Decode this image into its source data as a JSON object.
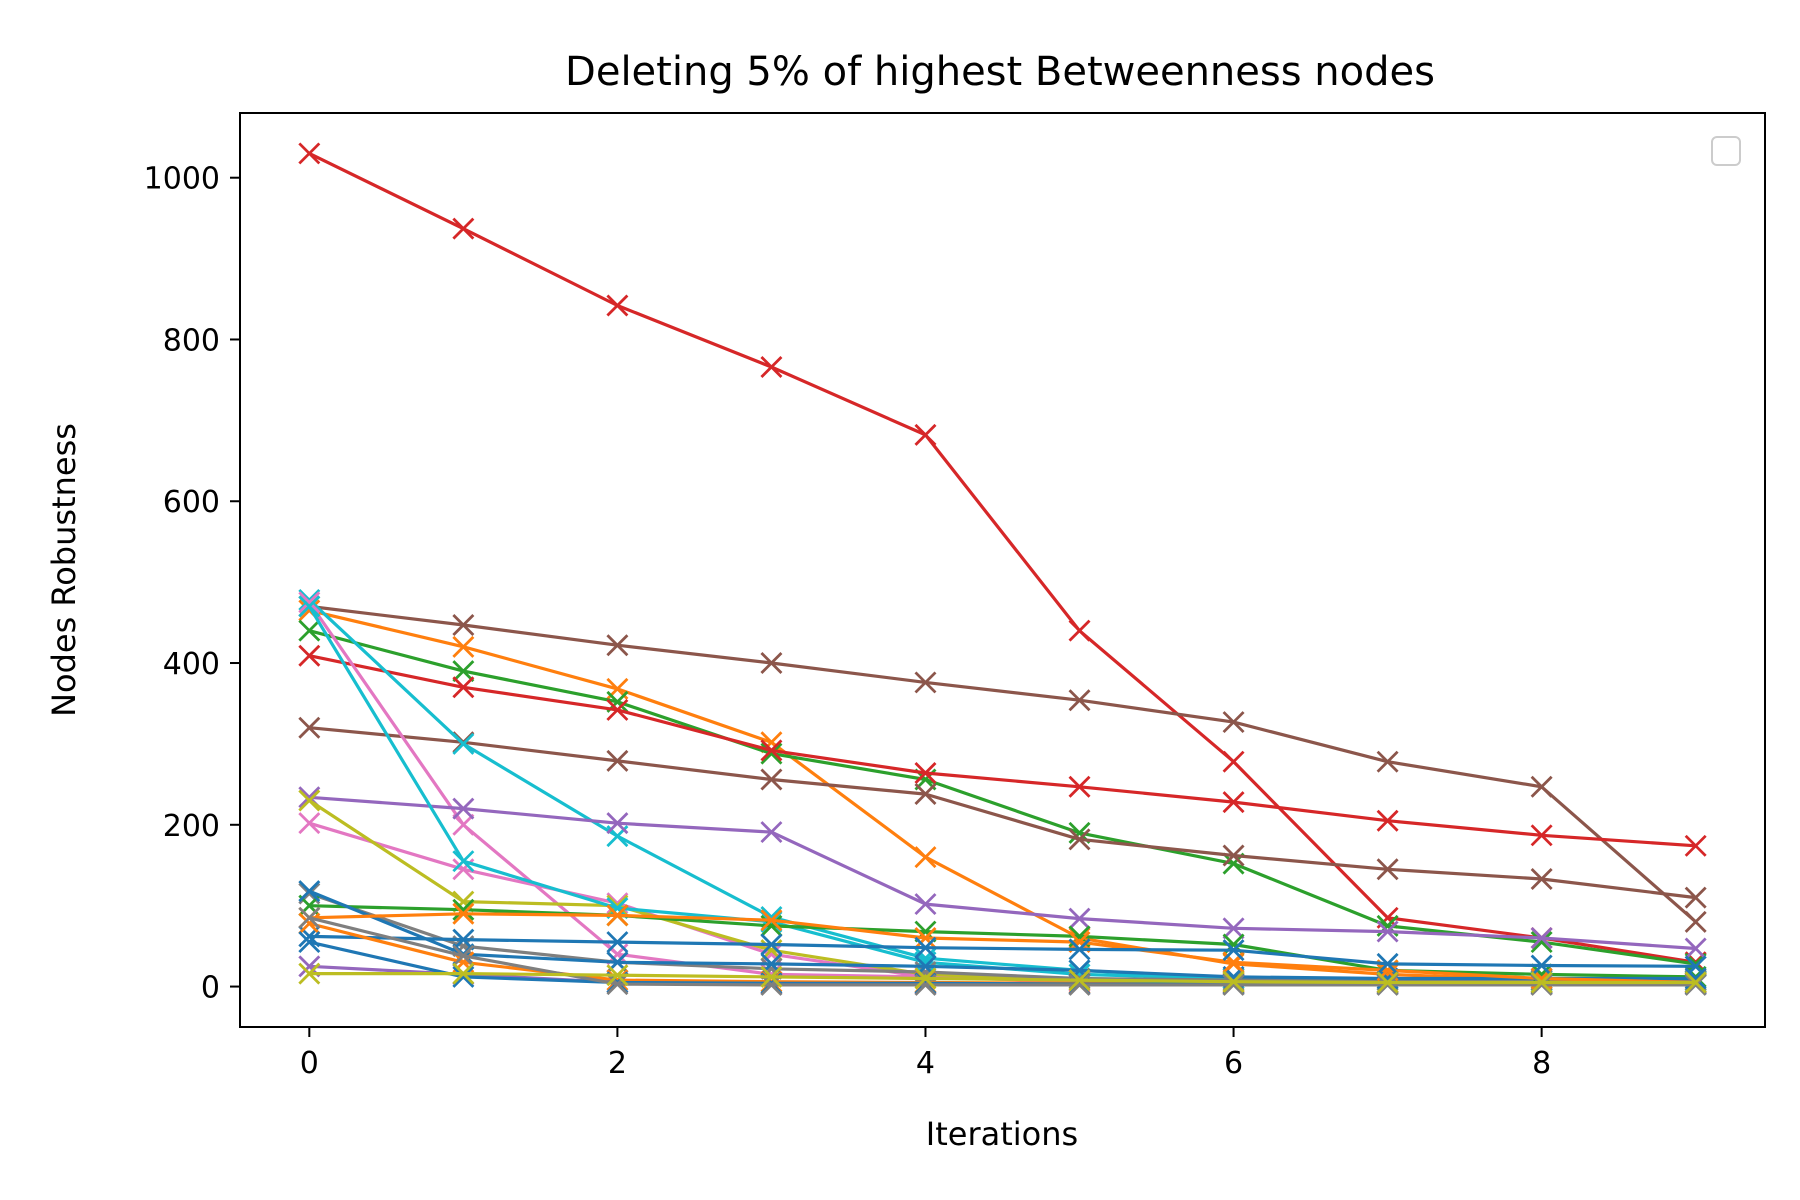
{
  "chart_data": {
    "type": "line",
    "title": "Deleting 5% of highest Betweenness nodes",
    "xlabel": "Iterations",
    "ylabel": "Nodes Robustness",
    "xlim": [
      -0.45,
      9.45
    ],
    "ylim": [
      -50,
      1080
    ],
    "xticks": [
      0,
      2,
      4,
      6,
      8
    ],
    "yticks": [
      0,
      200,
      400,
      600,
      800,
      1000
    ],
    "marker": "x",
    "grid": false,
    "legend": "top-right (empty)",
    "x": [
      0,
      1,
      2,
      3,
      4,
      5,
      6,
      7,
      8,
      9
    ],
    "series": [
      {
        "color": "#d62728",
        "values": [
          1030,
          937,
          842,
          766,
          682,
          440,
          278,
          85,
          60,
          30
        ]
      },
      {
        "color": "#8c564b",
        "values": [
          470,
          447,
          422,
          400,
          376,
          354,
          327,
          278,
          247,
          80
        ]
      },
      {
        "color": "#ff7f0e",
        "values": [
          465,
          420,
          368,
          302,
          160,
          60,
          28,
          15,
          8,
          5
        ]
      },
      {
        "color": "#2ca02c",
        "values": [
          440,
          390,
          352,
          288,
          256,
          190,
          152,
          75,
          55,
          28
        ]
      },
      {
        "color": "#d62728",
        "values": [
          409,
          370,
          342,
          292,
          264,
          247,
          228,
          205,
          187,
          174
        ]
      },
      {
        "color": "#8c564b",
        "values": [
          320,
          302,
          279,
          256,
          238,
          182,
          162,
          145,
          133,
          110
        ]
      },
      {
        "color": "#17becf",
        "values": [
          478,
          300,
          186,
          86,
          35,
          20,
          10,
          8,
          8,
          8
        ]
      },
      {
        "color": "#e377c2",
        "values": [
          475,
          200,
          40,
          15,
          12,
          8,
          6,
          5,
          5,
          5
        ]
      },
      {
        "color": "#9467bd",
        "values": [
          234,
          220,
          202,
          191,
          102,
          84,
          72,
          68,
          60,
          47
        ]
      },
      {
        "color": "#e377c2",
        "values": [
          202,
          145,
          103,
          40,
          12,
          6,
          4,
          3,
          3,
          3
        ]
      },
      {
        "color": "#bcbd22",
        "values": [
          230,
          105,
          100,
          45,
          15,
          8,
          5,
          5,
          5,
          5
        ]
      },
      {
        "color": "#17becf",
        "values": [
          470,
          155,
          97,
          80,
          30,
          15,
          10,
          8,
          7,
          7
        ]
      },
      {
        "color": "#7f7f7f",
        "values": [
          115,
          50,
          30,
          22,
          18,
          10,
          8,
          8,
          8,
          8
        ]
      },
      {
        "color": "#2ca02c",
        "values": [
          100,
          95,
          88,
          75,
          68,
          62,
          52,
          20,
          15,
          12
        ]
      },
      {
        "color": "#1f77b4",
        "values": [
          118,
          40,
          30,
          28,
          25,
          20,
          12,
          10,
          10,
          10
        ]
      },
      {
        "color": "#ff7f0e",
        "values": [
          85,
          90,
          88,
          82,
          60,
          55,
          30,
          20,
          10,
          5
        ]
      },
      {
        "color": "#1f77b4",
        "values": [
          62,
          58,
          55,
          52,
          48,
          46,
          45,
          28,
          26,
          25
        ]
      },
      {
        "color": "#ff7f0e",
        "values": [
          78,
          30,
          8,
          6,
          5,
          4,
          4,
          4,
          4,
          4
        ]
      },
      {
        "color": "#9467bd",
        "values": [
          25,
          15,
          5,
          3,
          3,
          3,
          3,
          3,
          3,
          3
        ]
      },
      {
        "color": "#1f77b4",
        "values": [
          55,
          12,
          5,
          4,
          4,
          3,
          3,
          3,
          3,
          3
        ]
      },
      {
        "color": "#7f7f7f",
        "values": [
          85,
          38,
          3,
          2,
          2,
          2,
          2,
          2,
          2,
          2
        ]
      },
      {
        "color": "#bcbd22",
        "values": [
          16,
          16,
          14,
          12,
          10,
          8,
          6,
          5,
          5,
          5
        ]
      }
    ]
  }
}
